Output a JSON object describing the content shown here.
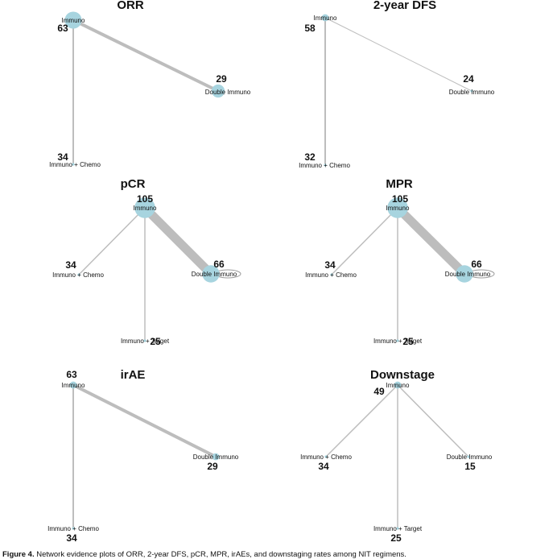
{
  "figure": {
    "caption_label": "Figure 4.",
    "caption_text": " Network evidence plots of ORR, 2-year DFS, pCR, MPR, irAEs, and downstaging rates among NIT regimens."
  },
  "colors": {
    "node": "#a7d4df",
    "edge": "#bdbdbd"
  },
  "panels": [
    {
      "id": "orr",
      "title": "ORR",
      "nodes": [
        {
          "id": "immuno",
          "label": "Immuno",
          "count": "63",
          "size": 63
        },
        {
          "id": "double",
          "label": "Double Immuno",
          "count": "29",
          "size": 29
        },
        {
          "id": "chemo",
          "label": "Immuno + Chemo",
          "count": "34",
          "size": 1
        }
      ],
      "edges": [
        {
          "from": "immuno",
          "to": "double",
          "weight": 4
        },
        {
          "from": "immuno",
          "to": "chemo",
          "weight": 2
        }
      ]
    },
    {
      "id": "dfs",
      "title": "2-year DFS",
      "nodes": [
        {
          "id": "immuno",
          "label": "Immuno",
          "count": "58",
          "size": 2
        },
        {
          "id": "double",
          "label": "Double Immuno",
          "count": "24",
          "size": 1
        },
        {
          "id": "chemo",
          "label": "Immuno + Chemo",
          "count": "32",
          "size": 1
        }
      ],
      "edges": [
        {
          "from": "immuno",
          "to": "double",
          "weight": 1
        },
        {
          "from": "immuno",
          "to": "chemo",
          "weight": 2
        }
      ]
    },
    {
      "id": "pcr",
      "title": "pCR",
      "nodes": [
        {
          "id": "immuno",
          "label": "Immuno",
          "count": "105",
          "size": 105
        },
        {
          "id": "double",
          "label": "Double Immuno",
          "count": "66",
          "size": 66
        },
        {
          "id": "chemo",
          "label": "Immuno + Chemo",
          "count": "34",
          "size": 1
        },
        {
          "id": "target",
          "label": "Immuno + Target",
          "count": "25",
          "size": 1
        }
      ],
      "edges": [
        {
          "from": "immuno",
          "to": "double",
          "weight": 11
        },
        {
          "from": "immuno",
          "to": "chemo",
          "weight": 1.5
        },
        {
          "from": "immuno",
          "to": "target",
          "weight": 1.5
        }
      ]
    },
    {
      "id": "mpr",
      "title": "MPR",
      "nodes": [
        {
          "id": "immuno",
          "label": "Immuno",
          "count": "105",
          "size": 105
        },
        {
          "id": "double",
          "label": "Double Immuno",
          "count": "66",
          "size": 66
        },
        {
          "id": "chemo",
          "label": "Immuno + Chemo",
          "count": "34",
          "size": 1
        },
        {
          "id": "target",
          "label": "Immuno + Target",
          "count": "25",
          "size": 1
        }
      ],
      "edges": [
        {
          "from": "immuno",
          "to": "double",
          "weight": 11
        },
        {
          "from": "immuno",
          "to": "chemo",
          "weight": 1.5
        },
        {
          "from": "immuno",
          "to": "target",
          "weight": 1.5
        }
      ]
    },
    {
      "id": "irae",
      "title": "irAE",
      "nodes": [
        {
          "id": "immuno",
          "label": "Immuno",
          "count": "63",
          "size": 2
        },
        {
          "id": "double",
          "label": "Double Immuno",
          "count": "29",
          "size": 2
        },
        {
          "id": "chemo",
          "label": "Immuno + Chemo",
          "count": "34",
          "size": 1
        }
      ],
      "edges": [
        {
          "from": "immuno",
          "to": "double",
          "weight": 4
        },
        {
          "from": "immuno",
          "to": "chemo",
          "weight": 2
        }
      ]
    },
    {
      "id": "downstage",
      "title": "Downstage",
      "nodes": [
        {
          "id": "immuno",
          "label": "Immuno",
          "count": "49",
          "size": 2
        },
        {
          "id": "chemo",
          "label": "Immuno + Chemo",
          "count": "34",
          "size": 1
        },
        {
          "id": "double",
          "label": "Double Immuno",
          "count": "15",
          "size": 1
        },
        {
          "id": "target",
          "label": "Immuno + Target",
          "count": "25",
          "size": 1
        }
      ],
      "edges": [
        {
          "from": "immuno",
          "to": "chemo",
          "weight": 1.5
        },
        {
          "from": "immuno",
          "to": "double",
          "weight": 1.5
        },
        {
          "from": "immuno",
          "to": "target",
          "weight": 1.5
        }
      ]
    }
  ]
}
